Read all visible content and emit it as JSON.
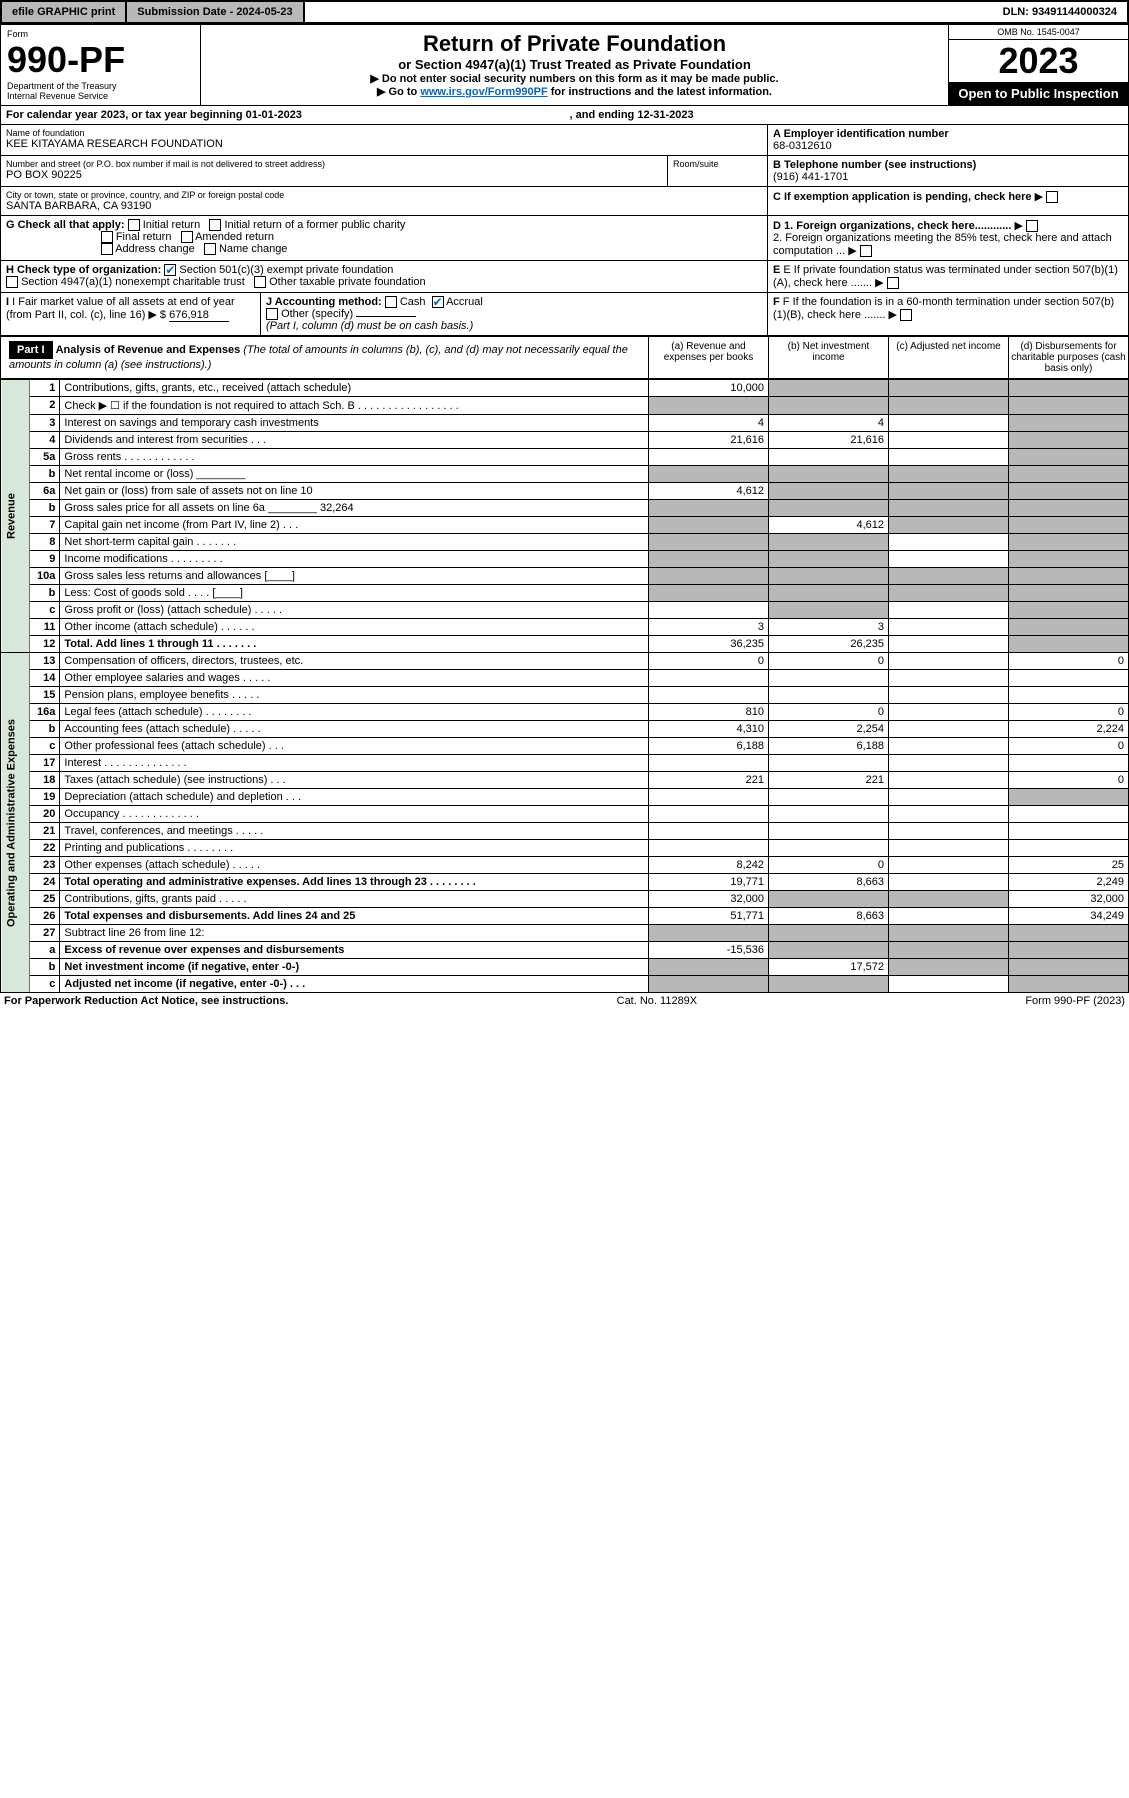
{
  "topbar": {
    "efile": "efile GRAPHIC print",
    "submission_label": "Submission Date - 2024-05-23",
    "dln": "DLN: 93491144000324"
  },
  "header": {
    "form_label": "Form",
    "form_num": "990-PF",
    "dept": "Department of the Treasury",
    "irs": "Internal Revenue Service",
    "title": "Return of Private Foundation",
    "subtitle": "or Section 4947(a)(1) Trust Treated as Private Foundation",
    "instr1": "▶ Do not enter social security numbers on this form as it may be made public.",
    "instr2_pre": "▶ Go to ",
    "instr2_link": "www.irs.gov/Form990PF",
    "instr2_post": " for instructions and the latest information.",
    "omb": "OMB No. 1545-0047",
    "year": "2023",
    "open": "Open to Public Inspection"
  },
  "cal": {
    "text_pre": "For calendar year 2023, or tax year beginning ",
    "begin": "01-01-2023",
    "text_mid": " , and ending ",
    "end": "12-31-2023"
  },
  "foundation": {
    "name_label": "Name of foundation",
    "name": "KEE KITAYAMA RESEARCH FOUNDATION",
    "ein_label": "A Employer identification number",
    "ein": "68-0312610",
    "addr_label": "Number and street (or P.O. box number if mail is not delivered to street address)",
    "addr": "PO BOX 90225",
    "room_label": "Room/suite",
    "phone_label": "B Telephone number (see instructions)",
    "phone": "(916) 441-1701",
    "city_label": "City or town, state or province, country, and ZIP or foreign postal code",
    "city": "SANTA BARBARA, CA  93190",
    "c_label": "C If exemption application is pending, check here"
  },
  "g": {
    "label": "G Check all that apply:",
    "initial": "Initial return",
    "initial_former": "Initial return of a former public charity",
    "final": "Final return",
    "amended": "Amended return",
    "address": "Address change",
    "name": "Name change"
  },
  "d": {
    "d1": "D 1. Foreign organizations, check here............",
    "d2": "2. Foreign organizations meeting the 85% test, check here and attach computation ..."
  },
  "h": {
    "label": "H Check type of organization:",
    "opt1": "Section 501(c)(3) exempt private foundation",
    "opt2": "Section 4947(a)(1) nonexempt charitable trust",
    "opt3": "Other taxable private foundation"
  },
  "e": {
    "label": "E If private foundation status was terminated under section 507(b)(1)(A), check here ......."
  },
  "i": {
    "label": "I Fair market value of all assets at end of year (from Part II, col. (c), line 16) ▶ $",
    "value": "676,918"
  },
  "j": {
    "label": "J Accounting method:",
    "cash": "Cash",
    "accrual": "Accrual",
    "other": "Other (specify)",
    "note": "(Part I, column (d) must be on cash basis.)"
  },
  "f": {
    "label": "F If the foundation is in a 60-month termination under section 507(b)(1)(B), check here ......."
  },
  "part1": {
    "label": "Part I",
    "title": "Analysis of Revenue and Expenses",
    "note": "(The total of amounts in columns (b), (c), and (d) may not necessarily equal the amounts in column (a) (see instructions).)",
    "col_a": "(a) Revenue and expenses per books",
    "col_b": "(b) Net investment income",
    "col_c": "(c) Adjusted net income",
    "col_d": "(d) Disbursements for charitable purposes (cash basis only)"
  },
  "sections": {
    "revenue": "Revenue",
    "expenses": "Operating and Administrative Expenses"
  },
  "lines": [
    {
      "no": "1",
      "label": "Contributions, gifts, grants, etc., received (attach schedule)",
      "a": "10,000",
      "b": "",
      "c": "",
      "d": "",
      "shade_b": true,
      "shade_c": true,
      "shade_d": true
    },
    {
      "no": "2",
      "label": "Check ▶ ☐ if the foundation is not required to attach Sch. B  . . . . . . . . . . . . . . . . .",
      "a": "",
      "b": "",
      "c": "",
      "d": "",
      "shade_a": true,
      "shade_b": true,
      "shade_c": true,
      "shade_d": true
    },
    {
      "no": "3",
      "label": "Interest on savings and temporary cash investments",
      "a": "4",
      "b": "4",
      "c": "",
      "d": "",
      "shade_d": true
    },
    {
      "no": "4",
      "label": "Dividends and interest from securities  . . .",
      "a": "21,616",
      "b": "21,616",
      "c": "",
      "d": "",
      "shade_d": true
    },
    {
      "no": "5a",
      "label": "Gross rents  . . . . . . . . . . . .",
      "a": "",
      "b": "",
      "c": "",
      "d": "",
      "shade_d": true
    },
    {
      "no": "b",
      "label": "Net rental income or (loss) ________",
      "a": "",
      "b": "",
      "c": "",
      "d": "",
      "shade_a": true,
      "shade_b": true,
      "shade_c": true,
      "shade_d": true
    },
    {
      "no": "6a",
      "label": "Net gain or (loss) from sale of assets not on line 10",
      "a": "4,612",
      "b": "",
      "c": "",
      "d": "",
      "shade_b": true,
      "shade_c": true,
      "shade_d": true
    },
    {
      "no": "b",
      "label": "Gross sales price for all assets on line 6a ________ 32,264",
      "a": "",
      "b": "",
      "c": "",
      "d": "",
      "shade_a": true,
      "shade_b": true,
      "shade_c": true,
      "shade_d": true
    },
    {
      "no": "7",
      "label": "Capital gain net income (from Part IV, line 2)  . . .",
      "a": "",
      "b": "4,612",
      "c": "",
      "d": "",
      "shade_a": true,
      "shade_c": true,
      "shade_d": true
    },
    {
      "no": "8",
      "label": "Net short-term capital gain  . . . . . . .",
      "a": "",
      "b": "",
      "c": "",
      "d": "",
      "shade_a": true,
      "shade_b": true,
      "shade_d": true
    },
    {
      "no": "9",
      "label": "Income modifications  . . . . . . . . .",
      "a": "",
      "b": "",
      "c": "",
      "d": "",
      "shade_a": true,
      "shade_b": true,
      "shade_d": true
    },
    {
      "no": "10a",
      "label": "Gross sales less returns and allowances  [____]",
      "a": "",
      "b": "",
      "c": "",
      "d": "",
      "shade_a": true,
      "shade_b": true,
      "shade_c": true,
      "shade_d": true
    },
    {
      "no": "b",
      "label": "Less: Cost of goods sold  . . . . [____]",
      "a": "",
      "b": "",
      "c": "",
      "d": "",
      "shade_a": true,
      "shade_b": true,
      "shade_c": true,
      "shade_d": true
    },
    {
      "no": "c",
      "label": "Gross profit or (loss) (attach schedule)  . . . . .",
      "a": "",
      "b": "",
      "c": "",
      "d": "",
      "shade_b": true,
      "shade_d": true
    },
    {
      "no": "11",
      "label": "Other income (attach schedule)  . . . . . .",
      "a": "3",
      "b": "3",
      "c": "",
      "d": "",
      "shade_d": true
    },
    {
      "no": "12",
      "label": "Total. Add lines 1 through 11  . . . . . . .",
      "a": "36,235",
      "b": "26,235",
      "c": "",
      "d": "",
      "shade_d": true,
      "bold": true
    },
    {
      "no": "13",
      "label": "Compensation of officers, directors, trustees, etc.",
      "a": "0",
      "b": "0",
      "c": "",
      "d": "0"
    },
    {
      "no": "14",
      "label": "Other employee salaries and wages  . . . . .",
      "a": "",
      "b": "",
      "c": "",
      "d": ""
    },
    {
      "no": "15",
      "label": "Pension plans, employee benefits  . . . . .",
      "a": "",
      "b": "",
      "c": "",
      "d": ""
    },
    {
      "no": "16a",
      "label": "Legal fees (attach schedule)  . . . . . . . .",
      "a": "810",
      "b": "0",
      "c": "",
      "d": "0"
    },
    {
      "no": "b",
      "label": "Accounting fees (attach schedule)  . . . . .",
      "a": "4,310",
      "b": "2,254",
      "c": "",
      "d": "2,224"
    },
    {
      "no": "c",
      "label": "Other professional fees (attach schedule)  . . .",
      "a": "6,188",
      "b": "6,188",
      "c": "",
      "d": "0"
    },
    {
      "no": "17",
      "label": "Interest  . . . . . . . . . . . . . .",
      "a": "",
      "b": "",
      "c": "",
      "d": ""
    },
    {
      "no": "18",
      "label": "Taxes (attach schedule) (see instructions)  . . .",
      "a": "221",
      "b": "221",
      "c": "",
      "d": "0"
    },
    {
      "no": "19",
      "label": "Depreciation (attach schedule) and depletion  . . .",
      "a": "",
      "b": "",
      "c": "",
      "d": "",
      "shade_d": true
    },
    {
      "no": "20",
      "label": "Occupancy  . . . . . . . . . . . . .",
      "a": "",
      "b": "",
      "c": "",
      "d": ""
    },
    {
      "no": "21",
      "label": "Travel, conferences, and meetings  . . . . .",
      "a": "",
      "b": "",
      "c": "",
      "d": ""
    },
    {
      "no": "22",
      "label": "Printing and publications  . . . . . . . .",
      "a": "",
      "b": "",
      "c": "",
      "d": ""
    },
    {
      "no": "23",
      "label": "Other expenses (attach schedule)  . . . . .",
      "a": "8,242",
      "b": "0",
      "c": "",
      "d": "25"
    },
    {
      "no": "24",
      "label": "Total operating and administrative expenses. Add lines 13 through 23  . . . . . . . .",
      "a": "19,771",
      "b": "8,663",
      "c": "",
      "d": "2,249",
      "bold": true
    },
    {
      "no": "25",
      "label": "Contributions, gifts, grants paid  . . . . .",
      "a": "32,000",
      "b": "",
      "c": "",
      "d": "32,000",
      "shade_b": true,
      "shade_c": true
    },
    {
      "no": "26",
      "label": "Total expenses and disbursements. Add lines 24 and 25",
      "a": "51,771",
      "b": "8,663",
      "c": "",
      "d": "34,249",
      "bold": true
    },
    {
      "no": "27",
      "label": "Subtract line 26 from line 12:",
      "a": "",
      "b": "",
      "c": "",
      "d": "",
      "shade_a": true,
      "shade_b": true,
      "shade_c": true,
      "shade_d": true
    },
    {
      "no": "a",
      "label": "Excess of revenue over expenses and disbursements",
      "a": "-15,536",
      "b": "",
      "c": "",
      "d": "",
      "shade_b": true,
      "shade_c": true,
      "shade_d": true,
      "bold": true
    },
    {
      "no": "b",
      "label": "Net investment income (if negative, enter -0-)",
      "a": "",
      "b": "17,572",
      "c": "",
      "d": "",
      "shade_a": true,
      "shade_c": true,
      "shade_d": true,
      "bold": true
    },
    {
      "no": "c",
      "label": "Adjusted net income (if negative, enter -0-)  . . .",
      "a": "",
      "b": "",
      "c": "",
      "d": "",
      "shade_a": true,
      "shade_b": true,
      "shade_d": true,
      "bold": true
    }
  ],
  "footer": {
    "left": "For Paperwork Reduction Act Notice, see instructions.",
    "mid": "Cat. No. 11289X",
    "right": "Form 990-PF (2023)"
  }
}
